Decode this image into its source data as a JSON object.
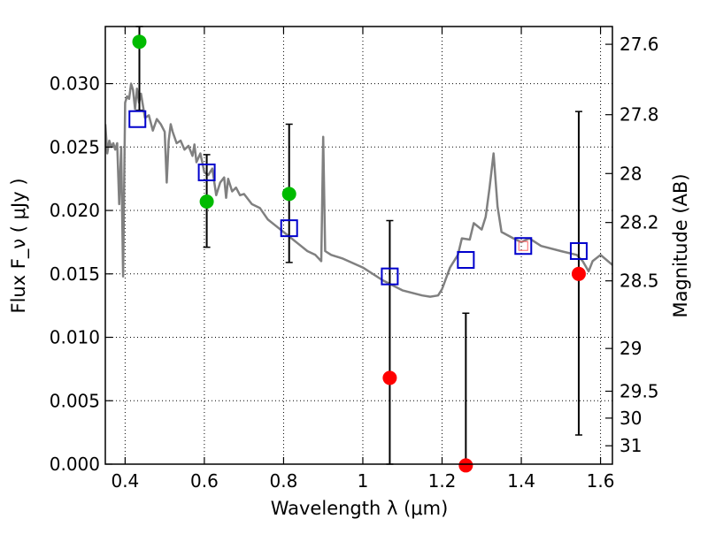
{
  "chart_data": {
    "type": "scatter",
    "xlabel": "Wavelength  λ (μm)",
    "ylabel": "Flux  F_ν  ( μJy )",
    "y2label": "Magnitude (AB)",
    "xlim": [
      0.35,
      1.63
    ],
    "ylim": [
      0.0,
      0.0345
    ],
    "grid": true,
    "x_ticks": [
      0.4,
      0.6,
      0.8,
      1.0,
      1.2,
      1.4,
      1.6
    ],
    "x_tick_labels": [
      "0.4",
      "0.6",
      "0.8",
      "1",
      "1.2",
      "1.4",
      "1.6"
    ],
    "y_ticks": [
      0.0,
      0.005,
      0.01,
      0.015,
      0.02,
      0.025,
      0.03
    ],
    "y_tick_labels": [
      "0.000",
      "0.005",
      "0.010",
      "0.015",
      "0.020",
      "0.025",
      "0.030"
    ],
    "mag_ticks": [
      {
        "flux": 0.0331,
        "label": "27.6"
      },
      {
        "flux": 0.02755,
        "label": "27.8"
      },
      {
        "flux": 0.02291,
        "label": "28"
      },
      {
        "flux": 0.01905,
        "label": "28.2"
      },
      {
        "flux": 0.01445,
        "label": "28.5"
      },
      {
        "flux": 0.00912,
        "label": "29"
      },
      {
        "flux": 0.00575,
        "label": "29.5"
      },
      {
        "flux": 0.00363,
        "label": "30"
      },
      {
        "flux": 0.00145,
        "label": "31"
      }
    ],
    "colors": {
      "sed": "#808080",
      "model": "#0000cc",
      "detection": "#00bb00",
      "upper_limit": "#ff0000",
      "errorbar": "#000000",
      "hilite_box": "#ff6666"
    },
    "sed_curve": {
      "x": [
        0.35,
        0.355,
        0.36,
        0.365,
        0.37,
        0.375,
        0.38,
        0.385,
        0.39,
        0.395,
        0.4,
        0.405,
        0.41,
        0.415,
        0.42,
        0.425,
        0.43,
        0.435,
        0.44,
        0.45,
        0.46,
        0.47,
        0.48,
        0.49,
        0.5,
        0.505,
        0.51,
        0.515,
        0.52,
        0.53,
        0.54,
        0.55,
        0.56,
        0.57,
        0.575,
        0.58,
        0.59,
        0.6,
        0.61,
        0.62,
        0.63,
        0.64,
        0.65,
        0.655,
        0.66,
        0.67,
        0.68,
        0.69,
        0.7,
        0.72,
        0.74,
        0.76,
        0.78,
        0.8,
        0.82,
        0.84,
        0.86,
        0.88,
        0.895,
        0.9,
        0.905,
        0.92,
        0.95,
        1.0,
        1.05,
        1.1,
        1.15,
        1.17,
        1.19,
        1.2,
        1.22,
        1.24,
        1.25,
        1.27,
        1.28,
        1.3,
        1.31,
        1.32,
        1.33,
        1.34,
        1.35,
        1.38,
        1.4,
        1.42,
        1.45,
        1.5,
        1.54,
        1.555,
        1.57,
        1.58,
        1.6,
        1.63
      ],
      "y": [
        0.0268,
        0.0245,
        0.0255,
        0.025,
        0.0253,
        0.0248,
        0.0253,
        0.0205,
        0.025,
        0.0148,
        0.0285,
        0.029,
        0.0288,
        0.03,
        0.0295,
        0.028,
        0.0296,
        0.0285,
        0.0292,
        0.0273,
        0.0275,
        0.0263,
        0.0272,
        0.0268,
        0.0262,
        0.0222,
        0.0255,
        0.0268,
        0.0262,
        0.0253,
        0.0255,
        0.0248,
        0.0251,
        0.0243,
        0.0252,
        0.0238,
        0.0245,
        0.023,
        0.0228,
        0.0233,
        0.0212,
        0.0222,
        0.0226,
        0.021,
        0.0225,
        0.0215,
        0.0218,
        0.0212,
        0.0213,
        0.0205,
        0.0202,
        0.0193,
        0.0188,
        0.0183,
        0.0178,
        0.0173,
        0.0168,
        0.0165,
        0.016,
        0.0258,
        0.0168,
        0.0165,
        0.0162,
        0.0155,
        0.0145,
        0.0137,
        0.0133,
        0.0132,
        0.0133,
        0.0138,
        0.0155,
        0.0165,
        0.0178,
        0.0177,
        0.019,
        0.0185,
        0.0195,
        0.0218,
        0.0245,
        0.0203,
        0.0183,
        0.0178,
        0.0175,
        0.0178,
        0.0172,
        0.0168,
        0.0165,
        0.016,
        0.0152,
        0.016,
        0.0165,
        0.0157
      ]
    },
    "series": [
      {
        "marker": "circle",
        "color": "detection",
        "points": [
          {
            "x": 0.436,
            "y": 0.0333,
            "err_lo": 0.0279,
            "err_hi": 0.0345
          },
          {
            "x": 0.606,
            "y": 0.0207,
            "err_lo": 0.0171,
            "err_hi": 0.0244
          },
          {
            "x": 0.814,
            "y": 0.0213,
            "err_lo": 0.0159,
            "err_hi": 0.0268
          }
        ]
      },
      {
        "marker": "circle",
        "color": "upper_limit",
        "points": [
          {
            "x": 1.068,
            "y": 0.0068,
            "err_lo": 0.0,
            "err_hi": 0.0192
          },
          {
            "x": 1.26,
            "y": -0.0001,
            "err_lo": 0.0,
            "err_hi": 0.0119
          },
          {
            "x": 1.545,
            "y": 0.015,
            "err_lo": 0.0023,
            "err_hi": 0.0278
          }
        ]
      },
      {
        "marker": "square",
        "color": "model",
        "points": [
          {
            "x": 0.431,
            "y": 0.0272
          },
          {
            "x": 0.606,
            "y": 0.023
          },
          {
            "x": 0.814,
            "y": 0.0186
          },
          {
            "x": 1.068,
            "y": 0.0148
          },
          {
            "x": 1.26,
            "y": 0.0161
          },
          {
            "x": 1.405,
            "y": 0.0172
          },
          {
            "x": 1.545,
            "y": 0.0168
          }
        ]
      }
    ],
    "hilite_points": [
      {
        "x": 1.405,
        "y": 0.0172
      }
    ]
  }
}
